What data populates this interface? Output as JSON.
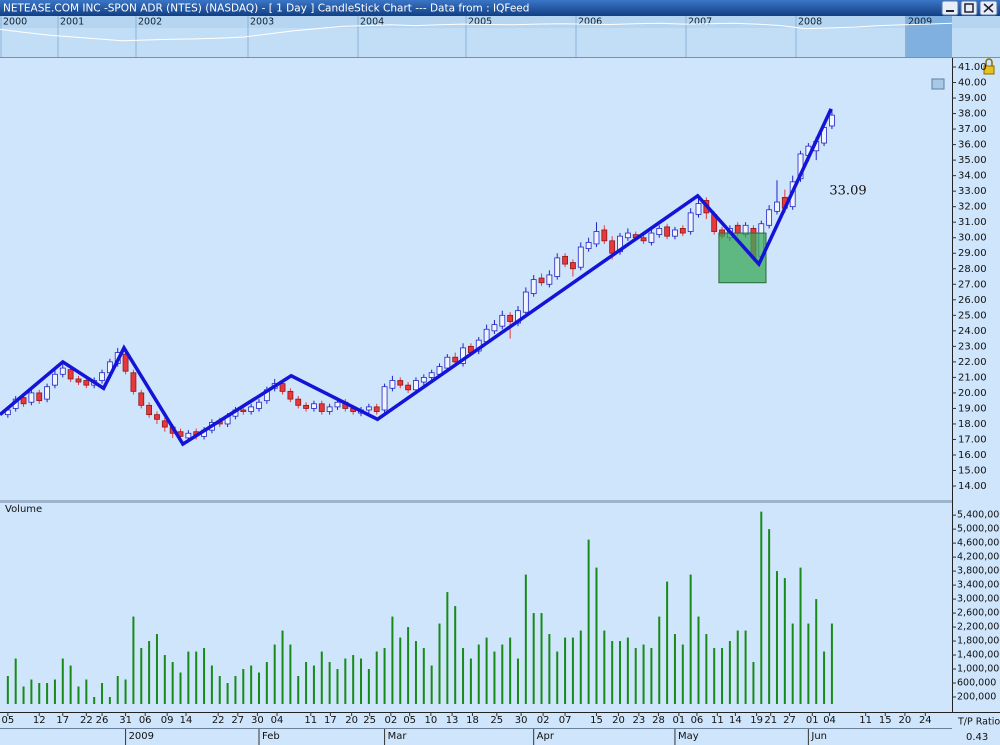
{
  "window_title": "NETEASE.COM INC  -SPON ADR (NTES) (NASDAQ) -  [ 1 Day ] CandleStick Chart --- Data from : IQFeed",
  "overview": {
    "years": [
      "2000",
      "2001",
      "2002",
      "2003",
      "2004",
      "2005",
      "2006",
      "2007",
      "2008",
      "2009"
    ],
    "values": [
      70,
      62,
      55,
      50,
      45,
      40,
      42,
      44,
      45,
      47,
      50,
      58,
      66,
      72,
      78,
      80,
      82,
      80,
      82,
      84,
      83,
      82,
      84,
      85,
      84,
      83,
      85,
      86,
      84,
      85,
      86,
      84,
      80,
      72,
      74,
      76,
      80,
      82,
      84,
      86
    ],
    "ylim": [
      0,
      100
    ],
    "color": "#ffffff"
  },
  "chart_data": [
    {
      "type": "candlestick",
      "open": [
        18.6,
        19.0,
        19.7,
        19.4,
        20.0,
        19.6,
        20.5,
        21.2,
        21.5,
        20.9,
        20.8,
        20.5,
        20.8,
        21.3,
        21.9,
        22.5,
        21.3,
        20.0,
        19.2,
        18.6,
        18.2,
        17.8,
        17.5,
        17.1,
        17.5,
        17.2,
        17.6,
        18.2,
        18.0,
        18.5,
        18.9,
        18.8,
        19.0,
        19.5,
        20.3,
        20.6,
        20.1,
        19.6,
        19.2,
        19.0,
        19.3,
        18.8,
        19.1,
        19.4,
        19.0,
        18.7,
        18.9,
        19.1,
        18.9,
        20.3,
        20.8,
        20.5,
        20.2,
        20.7,
        21.0,
        21.2,
        21.6,
        22.3,
        21.9,
        23.0,
        22.7,
        23.3,
        24.0,
        24.3,
        25.0,
        24.5,
        25.2,
        26.4,
        27.4,
        27.0,
        27.5,
        28.8,
        28.4,
        28.1,
        29.3,
        29.6,
        30.5,
        29.8,
        29.1,
        30.0,
        30.2,
        30.0,
        29.7,
        30.2,
        30.7,
        30.1,
        30.6,
        30.4,
        31.5,
        32.4,
        31.5,
        30.5,
        30.0,
        30.8,
        30.2,
        30.6,
        28.8,
        30.8,
        31.7,
        32.6,
        32.0,
        33.8,
        35.3,
        35.6,
        36.1,
        37.2
      ],
      "high": [
        19.1,
        19.8,
        19.9,
        20.3,
        20.2,
        20.6,
        21.5,
        21.9,
        21.7,
        21.1,
        21.0,
        21.0,
        21.5,
        22.2,
        22.9,
        22.7,
        21.5,
        20.2,
        19.4,
        18.8,
        18.4,
        18.0,
        17.7,
        17.6,
        17.7,
        17.8,
        18.3,
        18.4,
        18.7,
        19.1,
        19.1,
        19.3,
        19.6,
        20.4,
        20.9,
        20.8,
        20.3,
        19.8,
        19.4,
        19.5,
        19.5,
        19.3,
        19.6,
        19.6,
        19.2,
        19.1,
        19.3,
        19.3,
        20.6,
        21.1,
        21.0,
        20.7,
        21.0,
        21.2,
        21.5,
        21.9,
        22.5,
        22.6,
        23.2,
        23.2,
        23.6,
        24.4,
        24.7,
        25.3,
        25.2,
        25.6,
        26.8,
        27.6,
        27.7,
        27.9,
        29.0,
        29.0,
        28.6,
        29.7,
        30.0,
        31.0,
        30.8,
        30.1,
        30.3,
        30.6,
        30.4,
        30.2,
        30.5,
        30.8,
        30.9,
        30.7,
        30.8,
        31.9,
        32.6,
        32.6,
        31.7,
        30.7,
        30.8,
        31.0,
        31.0,
        30.8,
        31.1,
        32.1,
        33.7,
        33.1,
        34.0,
        35.6,
        36.1,
        36.5,
        37.4,
        38.3
      ],
      "low": [
        18.4,
        18.8,
        19.1,
        19.2,
        19.3,
        19.4,
        20.3,
        21.0,
        20.7,
        20.5,
        20.3,
        20.3,
        20.6,
        21.1,
        21.7,
        21.2,
        19.9,
        19.0,
        18.4,
        18.0,
        17.5,
        17.1,
        16.8,
        16.9,
        17.0,
        17.0,
        17.4,
        17.8,
        17.8,
        18.3,
        18.6,
        18.6,
        18.8,
        19.3,
        20.1,
        19.9,
        19.4,
        19.0,
        18.8,
        18.8,
        18.6,
        18.6,
        18.9,
        18.8,
        18.6,
        18.5,
        18.7,
        18.6,
        18.7,
        20.1,
        20.3,
        20.0,
        20.0,
        20.5,
        20.8,
        21.0,
        21.4,
        21.8,
        21.7,
        22.4,
        22.5,
        23.1,
        23.8,
        24.1,
        23.5,
        24.3,
        25.0,
        26.2,
        26.9,
        26.8,
        27.3,
        28.1,
        27.5,
        27.9,
        29.1,
        29.4,
        29.6,
        28.6,
        28.9,
        29.8,
        29.8,
        29.6,
        29.5,
        30.0,
        29.9,
        29.9,
        30.1,
        30.2,
        31.3,
        31.2,
        30.2,
        29.9,
        29.8,
        30.1,
        30.0,
        28.5,
        28.6,
        30.6,
        31.5,
        31.6,
        31.8,
        33.6,
        34.9,
        35.0,
        35.9,
        37.0
      ],
      "close": [
        18.9,
        19.6,
        19.3,
        20.0,
        19.5,
        20.4,
        21.2,
        21.6,
        20.9,
        20.7,
        20.5,
        20.8,
        21.3,
        22.0,
        22.6,
        21.4,
        20.1,
        19.2,
        18.6,
        18.3,
        17.8,
        17.4,
        17.2,
        17.4,
        17.3,
        17.6,
        18.1,
        18.0,
        18.5,
        18.9,
        18.8,
        19.1,
        19.4,
        20.2,
        20.6,
        20.1,
        19.6,
        19.2,
        19.0,
        19.3,
        18.8,
        19.1,
        19.4,
        19.0,
        18.8,
        18.9,
        19.1,
        18.8,
        20.4,
        20.8,
        20.5,
        20.2,
        20.8,
        21.0,
        21.3,
        21.7,
        22.3,
        22.0,
        22.9,
        22.6,
        23.4,
        24.1,
        24.4,
        25.0,
        24.6,
        25.3,
        26.5,
        27.3,
        27.1,
        27.6,
        28.7,
        28.3,
        28.0,
        29.4,
        29.7,
        30.4,
        29.8,
        29.0,
        30.1,
        30.3,
        30.0,
        29.8,
        30.3,
        30.6,
        30.1,
        30.5,
        30.3,
        31.6,
        32.2,
        31.6,
        30.4,
        30.1,
        30.6,
        30.3,
        30.8,
        28.7,
        30.9,
        31.8,
        32.3,
        31.9,
        33.6,
        35.4,
        35.9,
        36.2,
        37.1,
        37.9
      ],
      "up_color": "#2323c8",
      "down_color": "#e8383c",
      "ylim": [
        13.1,
        41.58
      ],
      "yticks": [
        {
          "value": 14,
          "label": "14.00"
        },
        {
          "value": 15,
          "label": "15.00"
        },
        {
          "value": 16,
          "label": "16.00"
        },
        {
          "value": 17,
          "label": "17.00"
        },
        {
          "value": 18,
          "label": "18.00"
        },
        {
          "value": 19,
          "label": "19.00"
        },
        {
          "value": 20,
          "label": "20.00"
        },
        {
          "value": 21,
          "label": "21.00"
        },
        {
          "value": 22,
          "label": "22.00"
        },
        {
          "value": 23,
          "label": "23.00"
        },
        {
          "value": 24,
          "label": "24.00"
        },
        {
          "value": 25,
          "label": "25.00"
        },
        {
          "value": 26,
          "label": "26.00"
        },
        {
          "value": 27,
          "label": "27.00"
        },
        {
          "value": 28,
          "label": "28.00"
        },
        {
          "value": 29,
          "label": "29.00"
        },
        {
          "value": 30,
          "label": "30.00"
        },
        {
          "value": 31,
          "label": "31.00"
        },
        {
          "value": 32,
          "label": "32.00"
        },
        {
          "value": 33,
          "label": "33.00"
        },
        {
          "value": 34,
          "label": "34.00"
        },
        {
          "value": 35,
          "label": "35.00"
        },
        {
          "value": 36,
          "label": "36.00"
        },
        {
          "value": 37,
          "label": "37.00"
        },
        {
          "value": 38,
          "label": "38.00"
        },
        {
          "value": 39,
          "label": "39.00"
        },
        {
          "value": 40,
          "label": "40.00"
        },
        {
          "value": 41,
          "label": "41.00"
        }
      ],
      "trendline": {
        "x": [
          -1,
          7.0,
          12.2,
          14.8,
          22.3,
          36.1,
          47.1,
          87.9,
          95.7,
          104.9
        ],
        "y": [
          18.6,
          22.0,
          20.3,
          22.9,
          16.7,
          21.1,
          18.3,
          32.7,
          28.3,
          38.3
        ],
        "color": "#1414d8"
      },
      "box": {
        "x": [
          90.6,
          96.6
        ],
        "y": [
          27.1,
          30.3
        ],
        "color": "#3aa85a"
      },
      "annotation": 33.09
    },
    {
      "type": "bar",
      "title": "Volume",
      "values": [
        800000,
        1300000,
        500000,
        700000,
        600000,
        600000,
        700000,
        1300000,
        1100000,
        500000,
        700000,
        200000,
        600000,
        200000,
        800000,
        700000,
        2500000,
        1600000,
        1800000,
        2000000,
        1400000,
        1200000,
        900000,
        1500000,
        1500000,
        1600000,
        1100000,
        800000,
        600000,
        800000,
        1000000,
        1100000,
        900000,
        1200000,
        1700000,
        2100000,
        1700000,
        800000,
        1200000,
        1100000,
        1500000,
        1200000,
        1000000,
        1300000,
        1400000,
        1300000,
        1000000,
        1500000,
        1600000,
        2500000,
        1900000,
        2200000,
        1800000,
        1600000,
        1100000,
        2300000,
        3200000,
        2800000,
        1600000,
        1300000,
        1700000,
        1900000,
        1500000,
        1700000,
        1900000,
        1300000,
        3700000,
        2600000,
        2600000,
        2000000,
        1500000,
        1900000,
        1900000,
        2100000,
        4700000,
        3900000,
        2100000,
        1800000,
        1800000,
        1900000,
        1600000,
        1700000,
        1600000,
        2500000,
        3500000,
        2000000,
        1700000,
        3700000,
        2500000,
        2000000,
        1600000,
        1600000,
        1800000,
        2100000,
        2100000,
        1200000,
        5500000,
        5000000,
        3800000,
        3600000,
        2300000,
        3900000,
        2300000,
        3000000,
        1500000,
        2300000
      ],
      "color": "#178a17",
      "ylim": [
        0,
        5690000
      ],
      "yticks": [
        {
          "value": 200000,
          "label": "200,000"
        },
        {
          "value": 600000,
          "label": "600,000"
        },
        {
          "value": 1000000,
          "label": "1,000,000"
        },
        {
          "value": 1400000,
          "label": "1,400,000"
        },
        {
          "value": 1800000,
          "label": "1,800,000"
        },
        {
          "value": 2200000,
          "label": "2,200,000"
        },
        {
          "value": 2600000,
          "label": "2,600,000"
        },
        {
          "value": 3000000,
          "label": "3,000,000"
        },
        {
          "value": 3400000,
          "label": "3,400,000"
        },
        {
          "value": 3800000,
          "label": "3,800,000"
        },
        {
          "value": 4200000,
          "label": "4,200,000"
        },
        {
          "value": 4600000,
          "label": "4,600,000"
        },
        {
          "value": 5000000,
          "label": "5,000,000"
        },
        {
          "value": 5400000,
          "label": "5,400,000"
        }
      ],
      "xlim": [
        -1,
        120.3
      ],
      "xticks": [
        {
          "value": 0,
          "label": "05"
        },
        {
          "value": 4,
          "label": "12"
        },
        {
          "value": 7,
          "label": "17"
        },
        {
          "value": 10,
          "label": "22"
        },
        {
          "value": 12,
          "label": "26"
        },
        {
          "value": 15,
          "label": "31"
        },
        {
          "value": 17.5,
          "label": "06"
        },
        {
          "value": 20.3,
          "label": "09"
        },
        {
          "value": 22.7,
          "label": "14"
        },
        {
          "value": 26.8,
          "label": "22"
        },
        {
          "value": 29.3,
          "label": "27"
        },
        {
          "value": 31.8,
          "label": "30"
        },
        {
          "value": 34.3,
          "label": "04"
        },
        {
          "value": 38.6,
          "label": "11"
        },
        {
          "value": 41.1,
          "label": "17"
        },
        {
          "value": 43.8,
          "label": "20"
        },
        {
          "value": 46.1,
          "label": "25"
        },
        {
          "value": 48.8,
          "label": "02"
        },
        {
          "value": 51.2,
          "label": "05"
        },
        {
          "value": 53.9,
          "label": "10"
        },
        {
          "value": 56.6,
          "label": "13"
        },
        {
          "value": 59.2,
          "label": "18"
        },
        {
          "value": 62.3,
          "label": "25"
        },
        {
          "value": 65.4,
          "label": "30"
        },
        {
          "value": 68.2,
          "label": "02"
        },
        {
          "value": 71,
          "label": "07"
        },
        {
          "value": 75,
          "label": "15"
        },
        {
          "value": 77.8,
          "label": "20"
        },
        {
          "value": 80.4,
          "label": "23"
        },
        {
          "value": 82.9,
          "label": "28"
        },
        {
          "value": 85.5,
          "label": "01"
        },
        {
          "value": 87.8,
          "label": "06"
        },
        {
          "value": 90.4,
          "label": "11"
        },
        {
          "value": 92.7,
          "label": "14"
        },
        {
          "value": 95.4,
          "label": "19"
        },
        {
          "value": 97.2,
          "label": "21"
        },
        {
          "value": 99.6,
          "label": "27"
        },
        {
          "value": 102.5,
          "label": "01"
        },
        {
          "value": 104.7,
          "label": "04"
        },
        {
          "value": 109.3,
          "label": "11"
        },
        {
          "value": 111.8,
          "label": "15"
        },
        {
          "value": 114.3,
          "label": "20"
        },
        {
          "value": 116.9,
          "label": "24"
        }
      ],
      "months": [
        {
          "value": 15,
          "label": "2009"
        },
        {
          "value": 32,
          "label": "Feb"
        },
        {
          "value": 48,
          "label": "Mar"
        },
        {
          "value": 67,
          "label": "Apr"
        },
        {
          "value": 85,
          "label": "May"
        },
        {
          "value": 102,
          "label": "Jun"
        }
      ]
    }
  ],
  "tp_ratio": {
    "label": "T/P Ratio",
    "value": 0.43
  }
}
